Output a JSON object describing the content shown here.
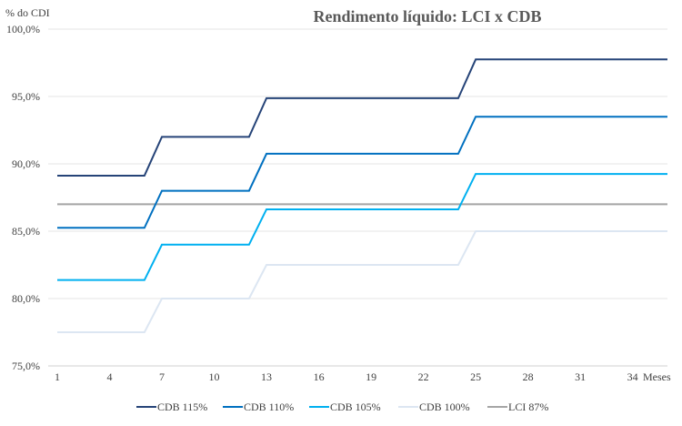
{
  "chart_data": {
    "type": "line",
    "title": "Rendimento líquido: LCI x CDB",
    "ylabel": "% do CDI",
    "xlabel": "Meses",
    "ylim": [
      75,
      100
    ],
    "xlim": [
      1,
      36
    ],
    "y_ticks": [
      75,
      80,
      85,
      90,
      95,
      100
    ],
    "y_tick_labels": [
      "75,0%",
      "80,0%",
      "85,0%",
      "90,0%",
      "95,0%",
      "100,0%"
    ],
    "x_ticks": [
      1,
      4,
      7,
      10,
      13,
      16,
      19,
      22,
      25,
      28,
      31,
      34
    ],
    "grid": true,
    "legend": "bottom",
    "x": [
      1,
      6,
      7,
      12,
      13,
      24,
      25,
      36
    ],
    "series": [
      {
        "name": "CDB 115%",
        "color": "#264478",
        "values": [
          89.125,
          89.125,
          92,
          92,
          94.875,
          94.875,
          97.75,
          97.75
        ]
      },
      {
        "name": "CDB 110%",
        "color": "#0070C0",
        "values": [
          85.25,
          85.25,
          88,
          88,
          90.75,
          90.75,
          93.5,
          93.5
        ]
      },
      {
        "name": "CDB 105%",
        "color": "#00B0F0",
        "values": [
          81.375,
          81.375,
          84,
          84,
          86.625,
          86.625,
          89.25,
          89.25
        ]
      },
      {
        "name": "CDB 100%",
        "color": "#DCE6F2",
        "values": [
          77.5,
          77.5,
          80,
          80,
          82.5,
          82.5,
          85,
          85
        ]
      },
      {
        "name": "LCI 87%",
        "color": "#A5A5A5",
        "values": [
          87,
          87,
          87,
          87,
          87,
          87,
          87,
          87
        ]
      }
    ]
  }
}
